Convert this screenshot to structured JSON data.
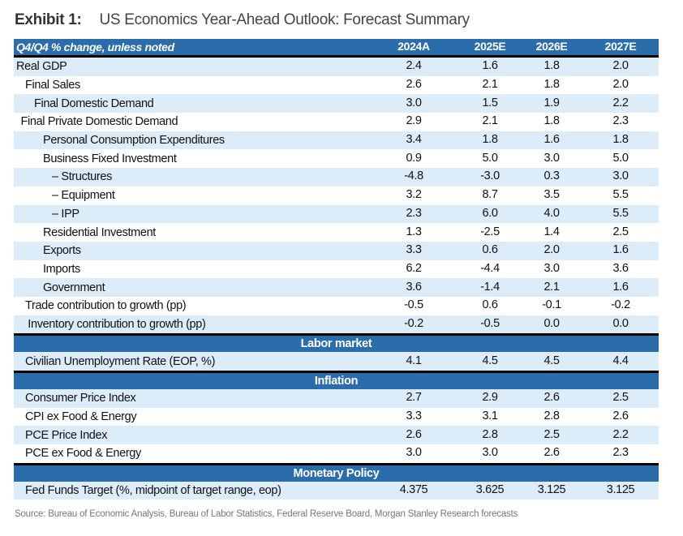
{
  "title": {
    "exhibit": "Exhibit 1:",
    "text": "US Economics Year-Ahead Outlook: Forecast Summary"
  },
  "header": {
    "label": "Q4/Q4 % change, unless noted",
    "columns": [
      "2024A",
      "2025E",
      "2026E",
      "2027E"
    ]
  },
  "sections": [
    {
      "title": "",
      "rows": [
        {
          "label": "Real GDP",
          "indent": 0,
          "values": [
            "2.4",
            "1.6",
            "1.8",
            "2.0"
          ]
        },
        {
          "label": "Final Sales",
          "indent": 1,
          "values": [
            "2.6",
            "2.1",
            "1.8",
            "2.0"
          ]
        },
        {
          "label": "Final Domestic Demand",
          "indent": 2,
          "values": [
            "3.0",
            "1.5",
            "1.9",
            "2.2"
          ]
        },
        {
          "label": "Final Private Domestic Demand",
          "indent": 0.5,
          "values": [
            "2.9",
            "2.1",
            "1.8",
            "2.3"
          ]
        },
        {
          "label": "Personal Consumption Expenditures",
          "indent": 3,
          "values": [
            "3.4",
            "1.8",
            "1.6",
            "1.8"
          ]
        },
        {
          "label": "Business Fixed Investment",
          "indent": 3,
          "values": [
            "0.9",
            "5.0",
            "3.0",
            "5.0"
          ]
        },
        {
          "label": "– Structures",
          "indent": 4,
          "values": [
            "-4.8",
            "-3.0",
            "0.3",
            "3.0"
          ]
        },
        {
          "label": "– Equipment",
          "indent": 4,
          "values": [
            "3.2",
            "8.7",
            "3.5",
            "5.5"
          ]
        },
        {
          "label": "– IPP",
          "indent": 4,
          "values": [
            "2.3",
            "6.0",
            "4.0",
            "5.5"
          ]
        },
        {
          "label": "Residential Investment",
          "indent": 3,
          "values": [
            "1.3",
            "-2.5",
            "1.4",
            "2.5"
          ]
        },
        {
          "label": "Exports",
          "indent": 3,
          "values": [
            "3.3",
            "0.6",
            "2.0",
            "1.6"
          ]
        },
        {
          "label": "Imports",
          "indent": 3,
          "values": [
            "6.2",
            "-4.4",
            "3.0",
            "3.6"
          ]
        },
        {
          "label": "Government",
          "indent": 3,
          "values": [
            "3.6",
            "-1.4",
            "2.1",
            "1.6"
          ]
        },
        {
          "label": "Trade contribution to growth (pp)",
          "indent": 1,
          "values": [
            "-0.5",
            "0.6",
            "-0.1",
            "-0.2"
          ]
        },
        {
          "label": "Inventory contribution to growth (pp)",
          "indent": 1.3,
          "values": [
            "-0.2",
            "-0.5",
            "0.0",
            "0.0"
          ]
        }
      ]
    },
    {
      "title": "Labor market",
      "rows": [
        {
          "label": "Civilian Unemployment Rate (EOP, %)",
          "indent": 1,
          "values": [
            "4.1",
            "4.5",
            "4.5",
            "4.4"
          ]
        }
      ]
    },
    {
      "title": "Inflation",
      "rows": [
        {
          "label": "Consumer Price Index",
          "indent": 1,
          "values": [
            "2.7",
            "2.9",
            "2.6",
            "2.5"
          ]
        },
        {
          "label": "CPI ex Food & Energy",
          "indent": 1,
          "values": [
            "3.3",
            "3.1",
            "2.8",
            "2.6"
          ]
        },
        {
          "label": "PCE Price Index",
          "indent": 1,
          "values": [
            "2.6",
            "2.8",
            "2.5",
            "2.2"
          ]
        },
        {
          "label": "PCE ex Food & Energy",
          "indent": 1,
          "values": [
            "3.0",
            "3.0",
            "2.6",
            "2.3"
          ]
        }
      ]
    },
    {
      "title": "Monetary Policy",
      "rows": [
        {
          "label": "Fed Funds Target (%, midpoint of target range, eop)",
          "indent": 1,
          "values": [
            "4.375",
            "3.625",
            "3.125",
            "3.125"
          ]
        }
      ]
    }
  ],
  "source": "Source: Bureau of Economic Analysis, Bureau of Labor Statistics, Federal Reserve Board, Morgan Stanley Research forecasts",
  "colors": {
    "header_bg": "#2b6cab",
    "alt_row": "#dcecf8",
    "rule": "#000000"
  }
}
